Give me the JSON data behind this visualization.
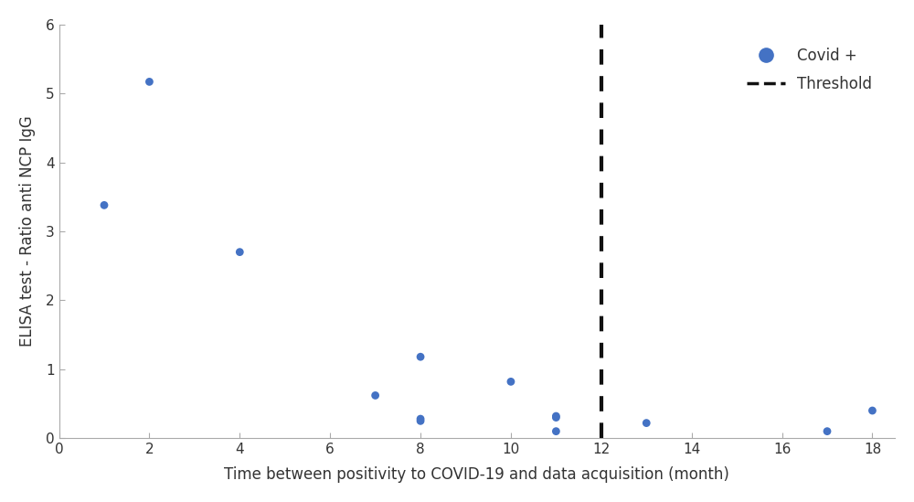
{
  "x": [
    1,
    2,
    4,
    7,
    8,
    8,
    8,
    10,
    11,
    11,
    11,
    13,
    17,
    18
  ],
  "y": [
    3.38,
    5.17,
    2.7,
    0.62,
    1.18,
    0.28,
    0.25,
    0.82,
    0.32,
    0.1,
    0.3,
    0.22,
    0.1,
    0.4
  ],
  "dot_color": "#4472c4",
  "dot_size": 40,
  "threshold_x": 12,
  "xlabel": "Time between positivity to COVID-19 and data acquisition (month)",
  "ylabel": "ELISA test - Ratio anti NCP IgG",
  "xlim": [
    0,
    18.5
  ],
  "ylim": [
    0,
    6
  ],
  "xticks": [
    0,
    2,
    4,
    6,
    8,
    10,
    12,
    14,
    16,
    18
  ],
  "yticks": [
    0,
    1,
    2,
    3,
    4,
    5,
    6
  ],
  "legend_covid_label": "Covid +",
  "legend_threshold_label": "Threshold",
  "background_color": "#ffffff",
  "spine_color": "#aaaaaa",
  "tick_label_color": "#333333",
  "dashed_line_color": "#111111",
  "xlabel_fontsize": 12,
  "ylabel_fontsize": 12,
  "tick_fontsize": 11,
  "legend_fontsize": 12
}
